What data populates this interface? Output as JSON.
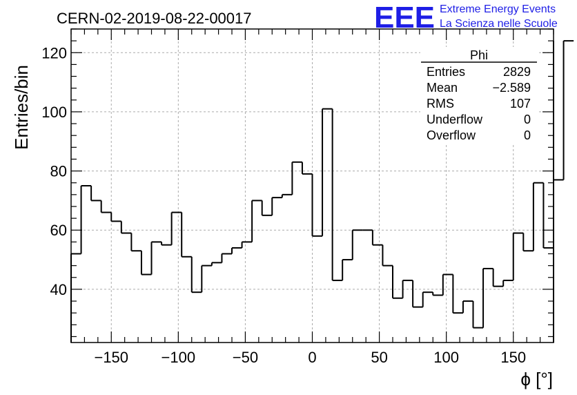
{
  "header": {
    "run_title": "CERN-02-2019-08-22-00017",
    "logo_letters": "EEE",
    "logo_line1": "Extreme Energy Events",
    "logo_line2": "La Scienza nelle Scuole"
  },
  "stats_box": {
    "name": "Phi",
    "rows": [
      {
        "label": "Entries",
        "value": "2829"
      },
      {
        "label": "Mean",
        "value": "−2.589"
      },
      {
        "label": "RMS",
        "value": "107"
      },
      {
        "label": "Underflow",
        "value": "0"
      },
      {
        "label": "Overflow",
        "value": "0"
      }
    ]
  },
  "chart_data": {
    "type": "histogram",
    "title": "CERN-02-2019-08-22-00017",
    "xlabel": "ϕ [°]",
    "ylabel": "Entries/bin",
    "xlim": [
      -180,
      180
    ],
    "ylim": [
      22,
      128
    ],
    "grid": true,
    "bin_width": 7.5,
    "x_ticks": [
      -150,
      -100,
      -50,
      0,
      50,
      100,
      150
    ],
    "x_tick_labels": [
      "−150",
      "−100",
      "−50",
      "0",
      "50",
      "100",
      "150"
    ],
    "y_ticks": [
      40,
      60,
      80,
      100,
      120
    ],
    "y_tick_labels": [
      "40",
      "60",
      "80",
      "100",
      "120"
    ],
    "values": [
      52,
      75,
      70,
      66,
      63,
      59,
      53,
      45,
      56,
      55,
      66,
      51,
      39,
      48,
      49,
      52,
      54,
      56,
      70,
      65,
      71,
      72,
      83,
      79,
      58,
      101,
      43,
      50,
      60,
      60,
      55,
      48,
      37,
      43,
      34,
      39,
      38,
      45,
      32,
      36,
      27,
      47,
      41,
      43,
      59,
      53,
      76,
      54,
      77,
      124
    ]
  }
}
